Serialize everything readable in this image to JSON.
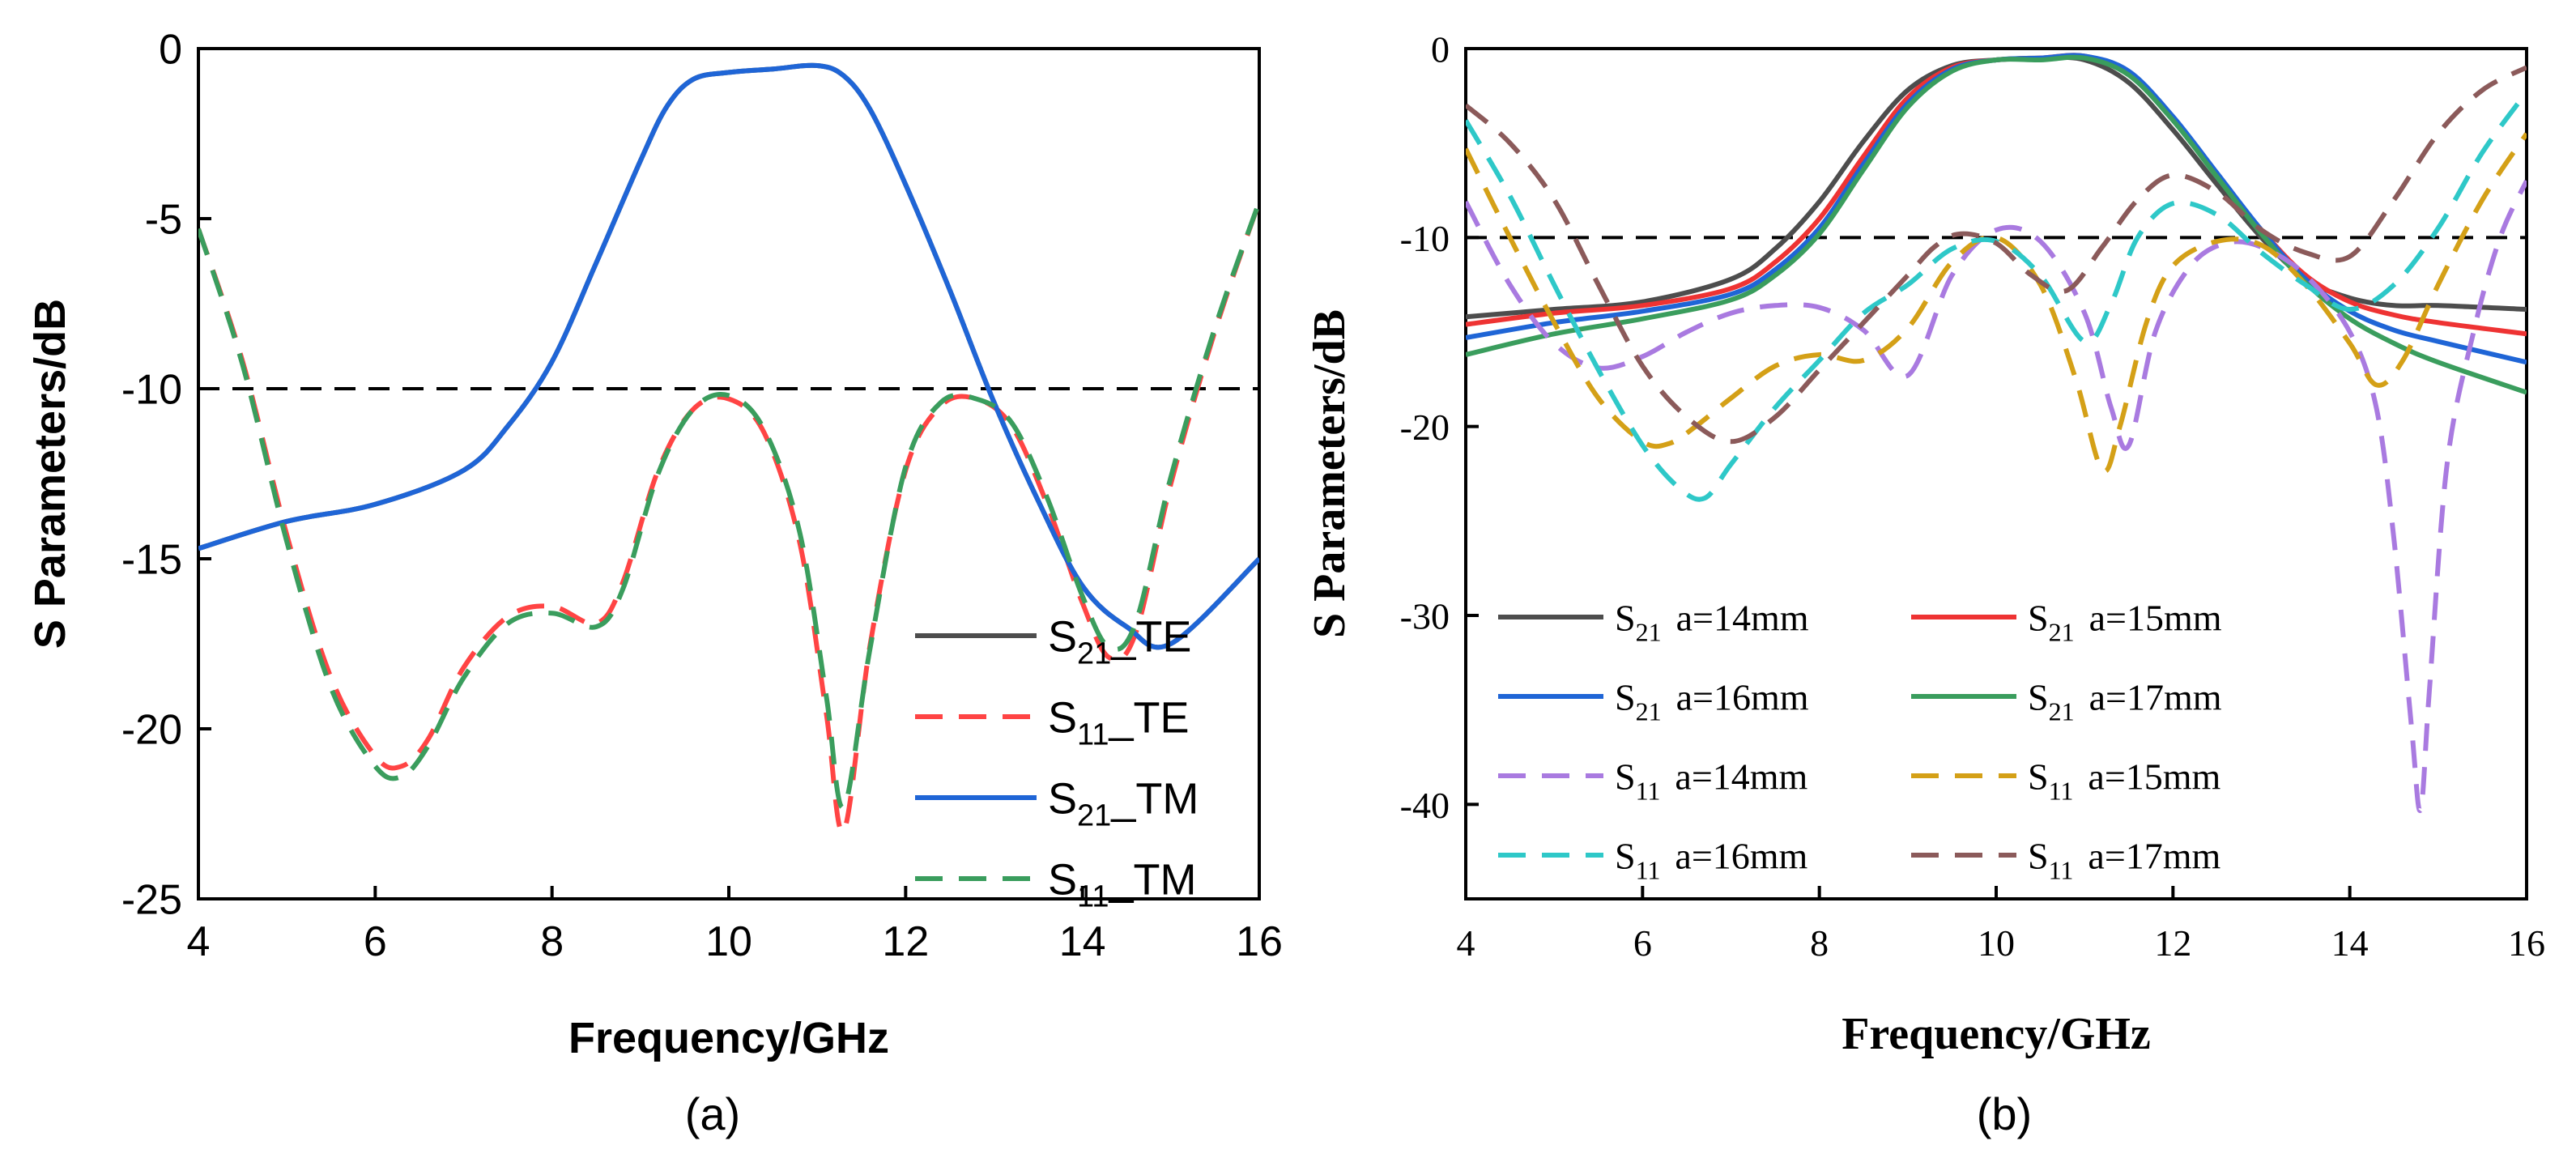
{
  "chart_data": [
    {
      "type": "line",
      "panel_label": "(a)",
      "xlabel": "Frequency/GHz",
      "ylabel": "S Parameters/dB",
      "xlim": [
        4,
        16
      ],
      "ylim": [
        -25,
        0
      ],
      "xticks": [
        4,
        6,
        8,
        10,
        12,
        14,
        16
      ],
      "yticks": [
        0,
        -5,
        -10,
        -15,
        -20,
        -25
      ],
      "reference_line": {
        "y": -10,
        "style": "dashed",
        "color": "#000000"
      },
      "series": [
        {
          "name": "S21_TE",
          "label_main": "S",
          "label_sub": "21",
          "label_tail": "_TE",
          "color": "#4d4d4d",
          "dash": "solid",
          "x": [
            4,
            5,
            6,
            7,
            7.5,
            8,
            8.5,
            9,
            9.3,
            9.6,
            10,
            10.5,
            11,
            11.3,
            11.6,
            12,
            12.5,
            13,
            13.5,
            14,
            14.5,
            15,
            16
          ],
          "y": [
            -14.7,
            -13.9,
            -13.4,
            -12.4,
            -11.1,
            -9.2,
            -6.3,
            -3.3,
            -1.7,
            -0.9,
            -0.7,
            -0.6,
            -0.5,
            -0.8,
            -1.8,
            -4.0,
            -7.1,
            -10.4,
            -13.3,
            -15.8,
            -17.0,
            -17.5,
            -15.0
          ]
        },
        {
          "name": "S11_TE",
          "label_main": "S",
          "label_sub": "11",
          "label_tail": "_TE",
          "color": "#ff4444",
          "dash": "long",
          "x": [
            4,
            4.5,
            5,
            5.5,
            6,
            6.3,
            6.6,
            7,
            7.5,
            8,
            8.5,
            8.8,
            9.2,
            9.6,
            10,
            10.4,
            10.8,
            11.1,
            11.3,
            11.6,
            12,
            12.4,
            12.8,
            13.2,
            13.6,
            14,
            14.3,
            14.6,
            15,
            15.5,
            16
          ],
          "y": [
            -5.3,
            -9.2,
            -14.3,
            -18.5,
            -20.8,
            -21.1,
            -20.3,
            -18.2,
            -16.7,
            -16.4,
            -16.9,
            -15.7,
            -12.4,
            -10.6,
            -10.3,
            -11.3,
            -14.5,
            -19.5,
            -23.0,
            -17.5,
            -12.4,
            -10.5,
            -10.3,
            -11.1,
            -13.4,
            -16.3,
            -17.9,
            -17.2,
            -12.8,
            -8.3,
            -4.5
          ]
        },
        {
          "name": "S21_TM",
          "label_main": "S",
          "label_sub": "21",
          "label_tail": "_TM",
          "color": "#1f65d6",
          "dash": "solid",
          "x": [
            4,
            5,
            6,
            7,
            7.5,
            8,
            8.5,
            9,
            9.3,
            9.6,
            10,
            10.5,
            11,
            11.3,
            11.6,
            12,
            12.5,
            13,
            13.5,
            14,
            14.5,
            15,
            16
          ],
          "y": [
            -14.7,
            -13.9,
            -13.4,
            -12.4,
            -11.1,
            -9.2,
            -6.3,
            -3.3,
            -1.7,
            -0.9,
            -0.7,
            -0.6,
            -0.5,
            -0.8,
            -1.8,
            -4.0,
            -7.1,
            -10.4,
            -13.3,
            -15.8,
            -17.0,
            -17.5,
            -15.0
          ]
        },
        {
          "name": "S11_TM",
          "label_main": "S",
          "label_sub": "11",
          "label_tail": "_TM",
          "color": "#3a9d5d",
          "dash": "long",
          "x": [
            4,
            4.5,
            5,
            5.5,
            6,
            6.3,
            6.6,
            7,
            7.5,
            8,
            8.5,
            8.8,
            9.2,
            9.6,
            10,
            10.4,
            10.8,
            11.1,
            11.3,
            11.6,
            12,
            12.4,
            12.8,
            13.2,
            13.6,
            14,
            14.3,
            14.6,
            15,
            15.5,
            16
          ],
          "y": [
            -5.3,
            -9.3,
            -14.5,
            -18.8,
            -21.1,
            -21.4,
            -20.5,
            -18.5,
            -16.9,
            -16.6,
            -17.0,
            -15.9,
            -12.5,
            -10.6,
            -10.2,
            -11.2,
            -14.2,
            -19.0,
            -22.3,
            -17.6,
            -12.3,
            -10.4,
            -10.3,
            -11.0,
            -13.2,
            -16.1,
            -17.6,
            -16.9,
            -12.6,
            -8.2,
            -4.5
          ]
        }
      ]
    },
    {
      "type": "line",
      "panel_label": "(b)",
      "xlabel": "Frequency/GHz",
      "ylabel": "S Parameters/dB",
      "xlim": [
        4,
        16
      ],
      "ylim": [
        -45,
        0
      ],
      "xticks": [
        4,
        6,
        8,
        10,
        12,
        14,
        16
      ],
      "yticks": [
        0,
        -10,
        -20,
        -30,
        -40
      ],
      "reference_line": {
        "y": -10,
        "style": "dashed",
        "color": "#000000"
      },
      "series": [
        {
          "name": "S21 a=14mm",
          "label_main": "S",
          "label_sub": "21",
          "label_tail": "a=14mm",
          "color": "#4d4d4d",
          "dash": "solid",
          "x": [
            4,
            5,
            6,
            7,
            7.5,
            8,
            8.5,
            9,
            9.5,
            10,
            10.5,
            11,
            11.5,
            12,
            12.5,
            13,
            13.5,
            14,
            14.5,
            15,
            16
          ],
          "y": [
            -14.2,
            -13.8,
            -13.4,
            -12.2,
            -10.6,
            -8.1,
            -4.9,
            -2.2,
            -0.9,
            -0.6,
            -0.5,
            -0.6,
            -1.8,
            -4.3,
            -7.2,
            -10.0,
            -12.2,
            -13.2,
            -13.6,
            -13.6,
            -13.8
          ]
        },
        {
          "name": "S21 a=15mm",
          "label_main": "S",
          "label_sub": "21",
          "label_tail": "a=15mm",
          "color": "#ee3333",
          "dash": "solid",
          "x": [
            4,
            5,
            6,
            7,
            7.5,
            8,
            8.5,
            9,
            9.5,
            10,
            10.5,
            11,
            11.5,
            12,
            12.5,
            13,
            13.5,
            14,
            14.5,
            15,
            16
          ],
          "y": [
            -14.6,
            -14.0,
            -13.6,
            -12.7,
            -11.3,
            -9.0,
            -5.7,
            -2.6,
            -1.0,
            -0.6,
            -0.5,
            -0.4,
            -1.3,
            -3.7,
            -6.7,
            -9.6,
            -12.0,
            -13.4,
            -14.1,
            -14.5,
            -15.1
          ]
        },
        {
          "name": "S21 a=16mm",
          "label_main": "S",
          "label_sub": "21",
          "label_tail": "a=16mm",
          "color": "#1f65d6",
          "dash": "solid",
          "x": [
            4,
            5,
            6,
            7,
            7.5,
            8,
            8.5,
            9,
            9.5,
            10,
            10.5,
            11,
            11.5,
            12,
            12.5,
            13,
            13.5,
            14,
            14.5,
            15,
            16
          ],
          "y": [
            -15.3,
            -14.5,
            -13.9,
            -13.0,
            -11.7,
            -9.5,
            -6.1,
            -2.9,
            -1.1,
            -0.6,
            -0.5,
            -0.4,
            -1.2,
            -3.6,
            -6.6,
            -9.6,
            -12.2,
            -13.9,
            -14.9,
            -15.5,
            -16.6
          ]
        },
        {
          "name": "S21 a=17mm",
          "label_main": "S",
          "label_sub": "21",
          "label_tail": "a=17mm",
          "color": "#3a9d5d",
          "dash": "solid",
          "x": [
            4,
            5,
            6,
            7,
            7.5,
            8,
            8.5,
            9,
            9.5,
            10,
            10.5,
            11,
            11.5,
            12,
            12.5,
            13,
            13.5,
            14,
            14.5,
            15,
            16
          ],
          "y": [
            -16.2,
            -15.1,
            -14.3,
            -13.3,
            -12.0,
            -9.8,
            -6.4,
            -3.1,
            -1.2,
            -0.6,
            -0.6,
            -0.5,
            -1.4,
            -3.8,
            -6.8,
            -9.8,
            -12.4,
            -14.3,
            -15.6,
            -16.6,
            -18.2
          ]
        },
        {
          "name": "S11 a=14mm",
          "label_main": "S",
          "label_sub": "11",
          "label_tail": "a=14mm",
          "color": "#a97ae0",
          "dash": "long",
          "x": [
            4,
            4.5,
            5,
            5.5,
            6,
            6.5,
            7,
            7.5,
            8,
            8.5,
            9,
            9.5,
            10,
            10.5,
            11,
            11.3,
            11.5,
            11.8,
            12.2,
            12.6,
            13,
            13.5,
            14,
            14.3,
            14.5,
            14.7,
            14.8,
            14.9,
            15.1,
            15.4,
            15.7,
            16
          ],
          "y": [
            -8.1,
            -12.5,
            -15.6,
            -16.9,
            -16.3,
            -15.0,
            -14.0,
            -13.6,
            -13.7,
            -14.9,
            -17.3,
            -12.0,
            -9.6,
            -10.2,
            -14.0,
            -19.0,
            -21.0,
            -15.0,
            -11.5,
            -10.3,
            -10.5,
            -12.0,
            -15.0,
            -19.0,
            -26.0,
            -36.0,
            -40.3,
            -34.0,
            -22.0,
            -15.0,
            -10.0,
            -7.0
          ]
        },
        {
          "name": "S11 a=15mm",
          "label_main": "S",
          "label_sub": "11",
          "label_tail": "a=15mm",
          "color": "#d4a017",
          "dash": "long",
          "x": [
            4,
            4.5,
            5,
            5.5,
            6,
            6.3,
            6.6,
            7,
            7.5,
            8,
            8.5,
            9,
            9.5,
            10,
            10.5,
            10.9,
            11.2,
            11.4,
            11.7,
            12,
            12.5,
            13,
            13.5,
            14,
            14.3,
            14.6,
            15,
            15.5,
            16
          ],
          "y": [
            -5.3,
            -10.0,
            -14.5,
            -18.5,
            -20.8,
            -20.9,
            -20.0,
            -18.5,
            -16.8,
            -16.2,
            -16.5,
            -14.8,
            -11.3,
            -10.0,
            -12.5,
            -17.5,
            -22.3,
            -20.0,
            -14.5,
            -11.5,
            -10.2,
            -10.4,
            -12.5,
            -15.6,
            -17.8,
            -16.5,
            -12.5,
            -8.0,
            -4.5
          ]
        },
        {
          "name": "S11 a=16mm",
          "label_main": "S",
          "label_sub": "11",
          "label_tail": "a=16mm",
          "color": "#2ec8c8",
          "dash": "long",
          "x": [
            4,
            4.5,
            5,
            5.5,
            6,
            6.4,
            6.7,
            7,
            7.5,
            8,
            8.5,
            9,
            9.5,
            10,
            10.5,
            11,
            11.3,
            11.6,
            12,
            12.5,
            13,
            13.5,
            14,
            14.5,
            15,
            15.5,
            16
          ],
          "y": [
            -3.8,
            -7.8,
            -12.5,
            -17.0,
            -21.0,
            -23.2,
            -23.8,
            -22.0,
            -19.0,
            -16.5,
            -14.0,
            -12.5,
            -10.6,
            -10.2,
            -12.0,
            -15.5,
            -13.5,
            -10.0,
            -8.2,
            -8.8,
            -10.8,
            -12.5,
            -13.8,
            -12.5,
            -9.5,
            -5.5,
            -2.3
          ]
        },
        {
          "name": "S11 a=17mm",
          "label_main": "S",
          "label_sub": "11",
          "label_tail": "a=17mm",
          "color": "#8b5a5a",
          "dash": "long",
          "x": [
            4,
            4.5,
            5,
            5.5,
            6,
            6.5,
            7,
            7.5,
            8,
            8.5,
            9,
            9.3,
            9.6,
            10,
            10.4,
            10.8,
            11.2,
            11.6,
            12,
            12.5,
            13,
            13.5,
            14,
            14.5,
            15,
            15.5,
            16
          ],
          "y": [
            -3.0,
            -5.0,
            -8.0,
            -12.5,
            -16.8,
            -19.5,
            -20.8,
            -19.5,
            -17.0,
            -14.5,
            -12.0,
            -10.5,
            -9.8,
            -10.3,
            -12.0,
            -12.8,
            -10.5,
            -8.0,
            -6.7,
            -7.6,
            -9.6,
            -10.8,
            -11.0,
            -8.0,
            -4.5,
            -2.2,
            -1.0
          ]
        }
      ]
    }
  ]
}
